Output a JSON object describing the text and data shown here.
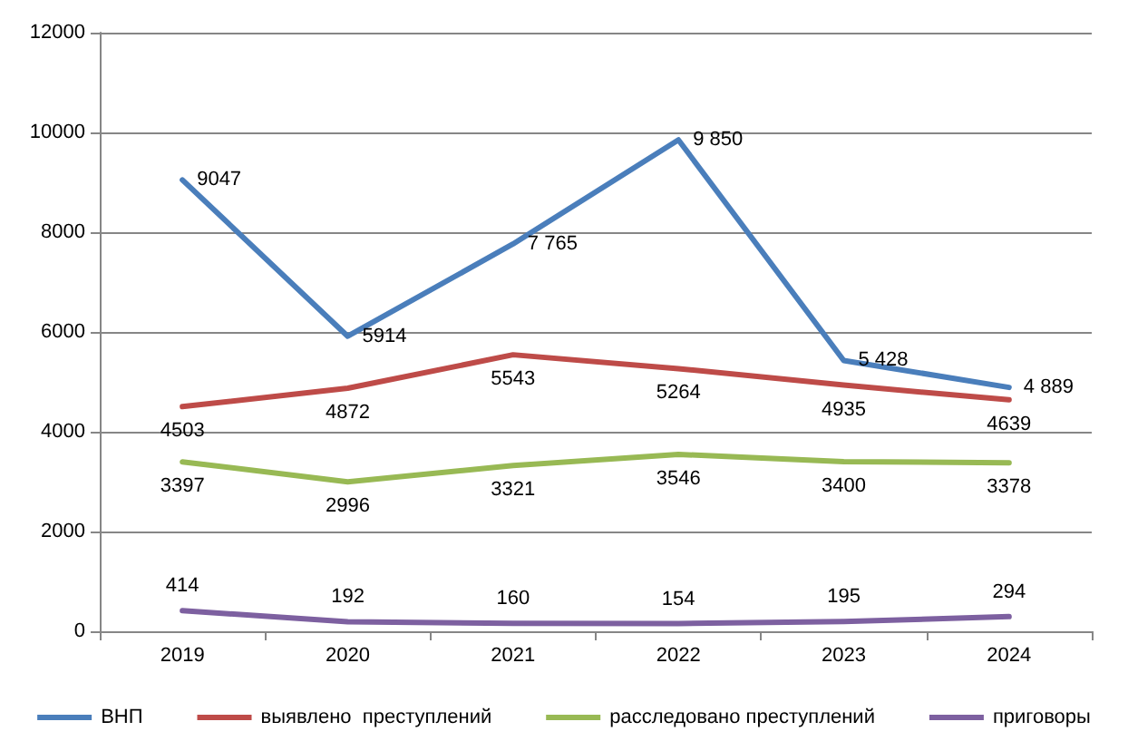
{
  "chart_data": {
    "type": "line",
    "categories": [
      "2019",
      "2020",
      "2021",
      "2022",
      "2023",
      "2024"
    ],
    "series": [
      {
        "name": "ВНП",
        "color": "#4a7ebb",
        "values": [
          9047,
          5914,
          7765,
          9850,
          5428,
          4889
        ],
        "value_labels": [
          "9047",
          "5914",
          "7 765",
          "9 850",
          "5 428",
          "4 889"
        ]
      },
      {
        "name": "выявлено  преступлений",
        "color": "#be4b48",
        "values": [
          4503,
          4872,
          5543,
          5264,
          4935,
          4639
        ],
        "value_labels": [
          "4503",
          "4872",
          "5543",
          "5264",
          "4935",
          "4639"
        ]
      },
      {
        "name": "расследовано преступлений",
        "color": "#98b954",
        "values": [
          3397,
          2996,
          3321,
          3546,
          3400,
          3378
        ],
        "value_labels": [
          "3397",
          "2996",
          "3321",
          "3546",
          "3400",
          "3378"
        ]
      },
      {
        "name": "приговоры",
        "color": "#7d60a0",
        "values": [
          414,
          192,
          160,
          154,
          195,
          294
        ],
        "value_labels": [
          "414",
          "192",
          "160",
          "154",
          "195",
          "294"
        ]
      }
    ],
    "ylim": [
      0,
      12000
    ],
    "yticks": [
      0,
      2000,
      4000,
      6000,
      8000,
      10000,
      12000
    ],
    "grid": "y",
    "legend": "bottom",
    "marker": "none",
    "line_style": "solid"
  }
}
